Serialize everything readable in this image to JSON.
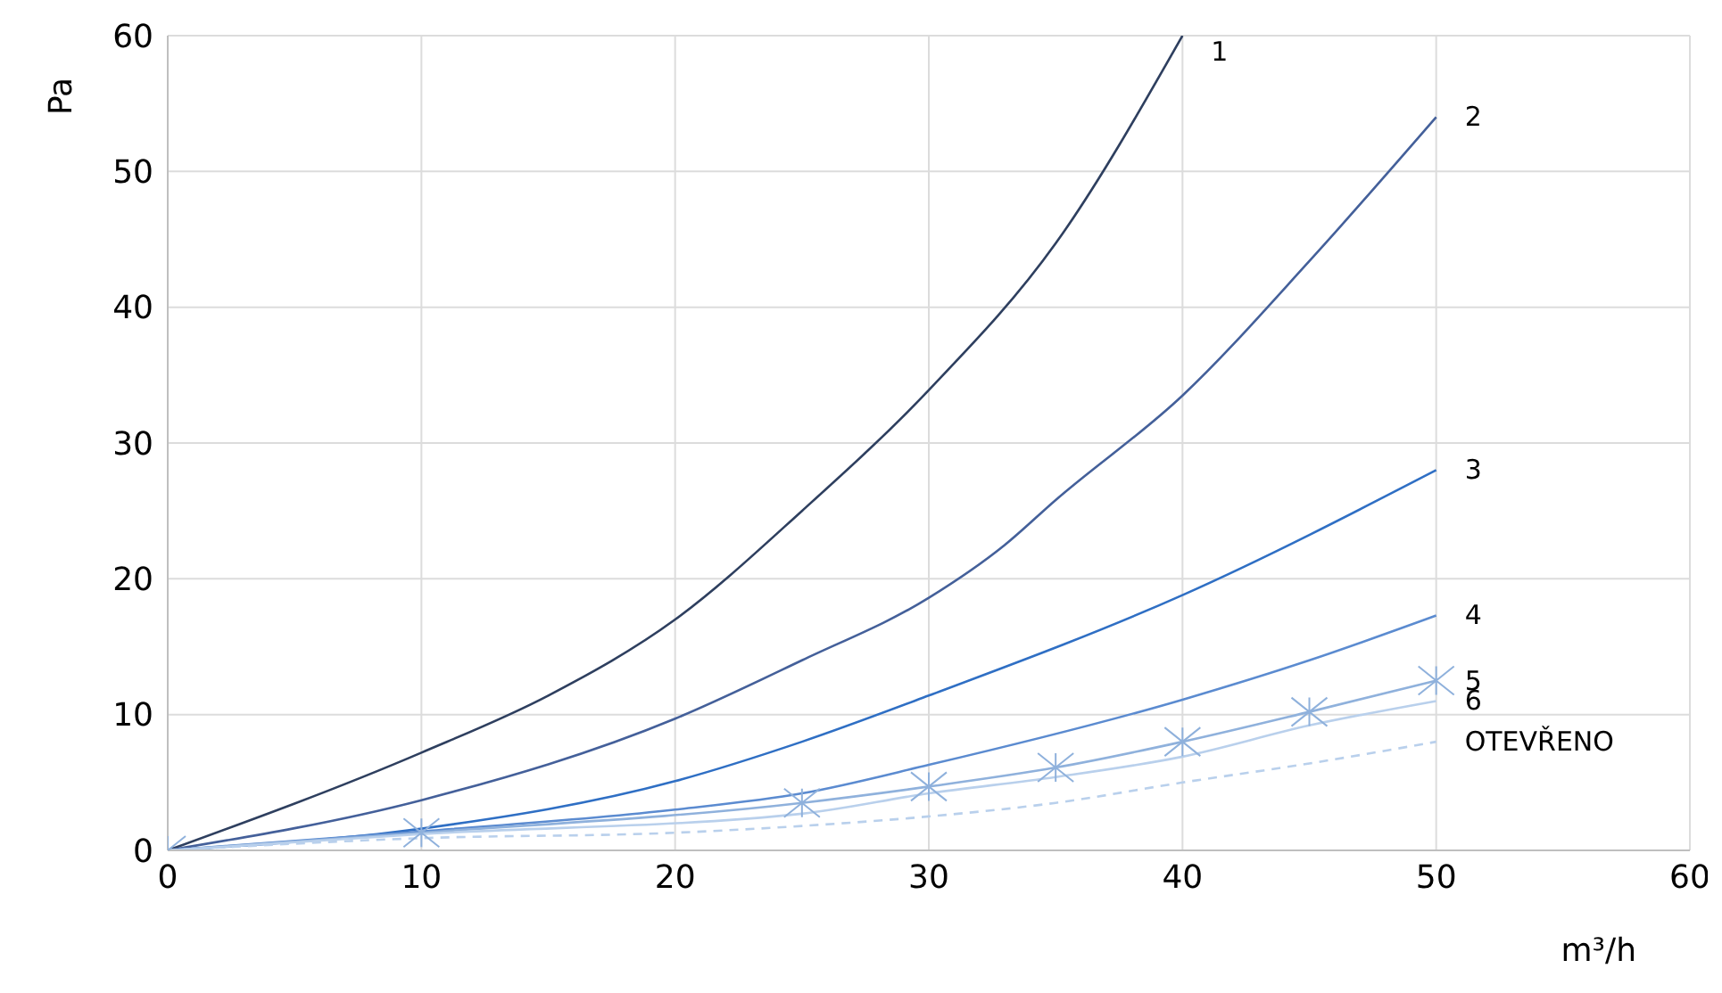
{
  "chart_data": {
    "type": "line",
    "xlabel": "m³/h",
    "ylabel": "Pa",
    "xlim": [
      0,
      60
    ],
    "xticks": [
      0,
      10,
      20,
      30,
      40,
      50,
      60
    ],
    "ylim": [
      0,
      60
    ],
    "yticks": [
      0,
      10,
      20,
      30,
      40,
      50,
      60
    ],
    "grid": true,
    "legend": false,
    "marker": "none",
    "line_style": "solid",
    "series": [
      {
        "name": "1",
        "color": "#2e3f5f",
        "x": [
          0,
          10,
          15,
          20,
          25,
          30,
          35,
          40
        ],
        "values": [
          0,
          7.2,
          11.4,
          17,
          25,
          33.9,
          44.7,
          60
        ]
      },
      {
        "name": "2",
        "color": "#44609a",
        "x": [
          0,
          10,
          20,
          25,
          30,
          33,
          35,
          40,
          45,
          50
        ],
        "values": [
          0,
          3.7,
          9.7,
          14,
          18.6,
          22.5,
          25.8,
          33.5,
          43.4,
          54
        ]
      },
      {
        "name": "3",
        "color": "#2f6fc4",
        "x": [
          0,
          10,
          20,
          25,
          30,
          40,
          50
        ],
        "values": [
          0,
          1.6,
          5.1,
          8,
          11.4,
          18.8,
          28
        ]
      },
      {
        "name": "4",
        "color": "#5b8bd0",
        "x": [
          0,
          10,
          20,
          25,
          30,
          40,
          45,
          50
        ],
        "values": [
          0,
          1.4,
          3,
          4.2,
          6.3,
          11.1,
          14,
          17.3
        ]
      },
      {
        "name": "5",
        "color": "#8fb1dc",
        "marker": "cross",
        "x": [
          0,
          10,
          25,
          30,
          35,
          40,
          45,
          50
        ],
        "values": [
          0,
          1.3,
          3.5,
          4.7,
          6.1,
          8,
          10.2,
          12.5
        ]
      },
      {
        "name": "6",
        "color": "#b9d0ec",
        "x": [
          0,
          10,
          25,
          30,
          35,
          40,
          45,
          50
        ],
        "values": [
          0,
          1.2,
          2.7,
          4.2,
          5.4,
          6.9,
          9.2,
          11
        ]
      },
      {
        "name": "OTEVŘENO",
        "color": "#b9d0ec",
        "line_style": "dashed",
        "x": [
          0,
          10,
          20,
          25,
          30,
          35,
          40,
          45,
          50
        ],
        "values": [
          0,
          0.9,
          1.3,
          1.8,
          2.5,
          3.5,
          5,
          6.4,
          8
        ]
      }
    ]
  }
}
